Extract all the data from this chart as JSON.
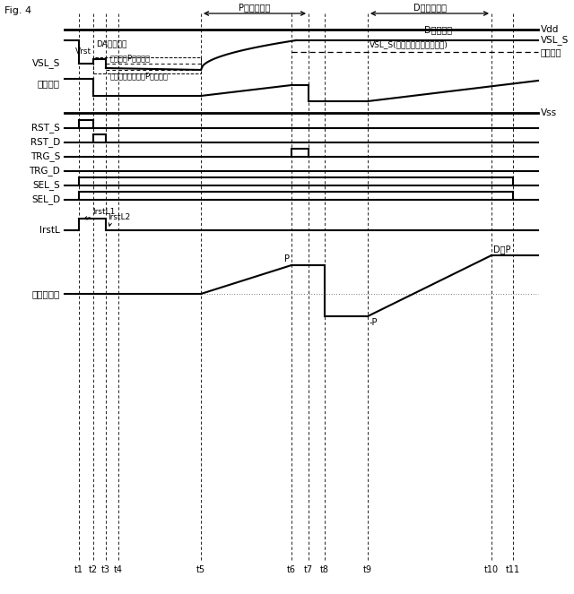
{
  "title": "Fig. 4",
  "bg_color": "#ffffff",
  "vdd_label": "Vdd",
  "vss_label": "Vss",
  "p_period_label": "P相比較期間",
  "d_period_label": "D相比較期間",
  "vsl_s_label": "VSL_S",
  "vsl_s_left_label": "VSL_S",
  "d_level_label": "D相レベル",
  "vsl_s_no_adj_label": "VSL_S(動作点調整しない場合)",
  "ref_signal_label": "参照信号",
  "ref_signal_left_label": "参照信号",
  "da_label": "DA性能改善",
  "optimal_p_label": "最適動作P相レベル",
  "diff_amp_label": "差動増幅器の固有P相レベル",
  "vrst_label": "Vrst",
  "count_label": "カウント値",
  "p_label": "P",
  "neg_p_label": "-P",
  "d_minus_p_label": "D－P",
  "irstl_label": "IrstL",
  "irstl1_label": "IrstL1",
  "irstl2_label": "IrstL2"
}
